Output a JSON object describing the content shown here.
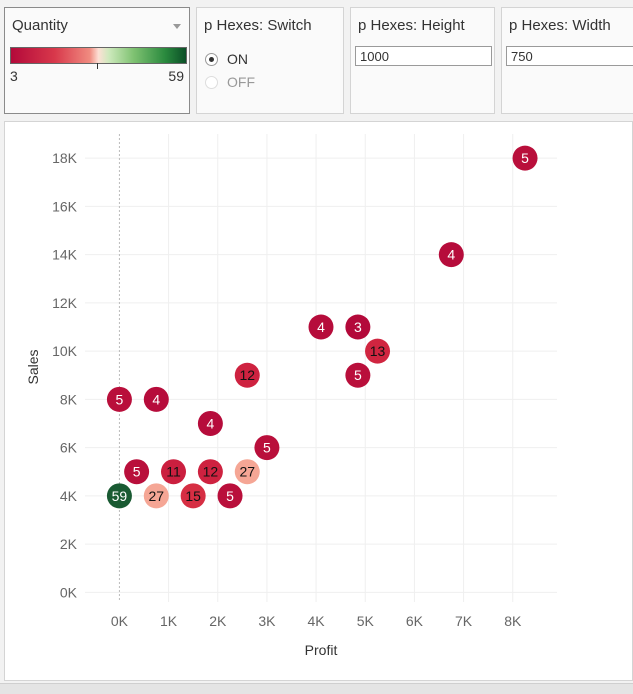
{
  "filters": {
    "quantity": {
      "title": "Quantity",
      "min_label": "3",
      "max_label": "59"
    },
    "switch": {
      "title": "p Hexes: Switch",
      "options": [
        "ON",
        "OFF"
      ],
      "selected": "ON"
    },
    "height": {
      "title": "p Hexes: Height",
      "value": "1000"
    },
    "width": {
      "title": "p Hexes: Width",
      "value": "750"
    }
  },
  "chart_data": {
    "type": "scatter",
    "xlabel": "Profit",
    "ylabel": "Sales",
    "x_ticks": [
      "0K",
      "1K",
      "2K",
      "3K",
      "4K",
      "5K",
      "6K",
      "7K",
      "8K"
    ],
    "y_ticks": [
      "0K",
      "2K",
      "4K",
      "6K",
      "8K",
      "10K",
      "12K",
      "14K",
      "16K",
      "18K"
    ],
    "xlim": [
      -700,
      8900
    ],
    "ylim": [
      -400,
      19000
    ],
    "color_scale": {
      "field": "Quantity",
      "min": 3,
      "max": 59
    },
    "points": [
      {
        "x": 8250,
        "y": 18000,
        "quantity": 5
      },
      {
        "x": 6750,
        "y": 14000,
        "quantity": 4
      },
      {
        "x": 4100,
        "y": 11000,
        "quantity": 4
      },
      {
        "x": 4850,
        "y": 11000,
        "quantity": 3
      },
      {
        "x": 5250,
        "y": 10000,
        "quantity": 13
      },
      {
        "x": 4850,
        "y": 9000,
        "quantity": 5
      },
      {
        "x": 2600,
        "y": 9000,
        "quantity": 12
      },
      {
        "x": 0,
        "y": 8000,
        "quantity": 5
      },
      {
        "x": 750,
        "y": 8000,
        "quantity": 4
      },
      {
        "x": 1850,
        "y": 7000,
        "quantity": 4
      },
      {
        "x": 3000,
        "y": 6000,
        "quantity": 5
      },
      {
        "x": 350,
        "y": 5000,
        "quantity": 5
      },
      {
        "x": 1100,
        "y": 5000,
        "quantity": 11
      },
      {
        "x": 1850,
        "y": 5000,
        "quantity": 12
      },
      {
        "x": 2600,
        "y": 5000,
        "quantity": 27
      },
      {
        "x": 0,
        "y": 4000,
        "quantity": 59
      },
      {
        "x": 750,
        "y": 4000,
        "quantity": 27
      },
      {
        "x": 1500,
        "y": 4000,
        "quantity": 15
      },
      {
        "x": 2250,
        "y": 4000,
        "quantity": 5
      }
    ]
  }
}
